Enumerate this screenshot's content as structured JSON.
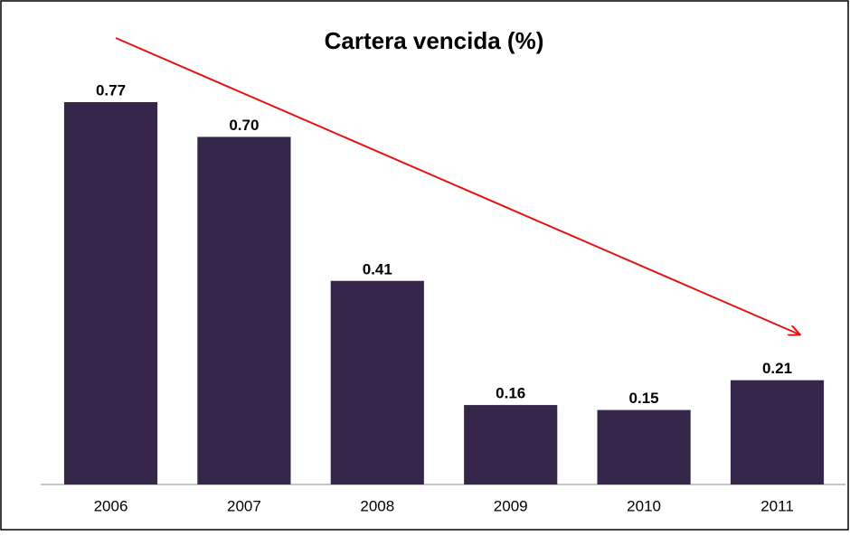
{
  "chart_data": {
    "type": "bar",
    "title": "Cartera vencida (%)",
    "categories": [
      "2006",
      "2007",
      "2008",
      "2009",
      "2010",
      "2011"
    ],
    "values": [
      0.77,
      0.7,
      0.41,
      0.16,
      0.15,
      0.21
    ],
    "value_labels": [
      "0.77",
      "0.70",
      "0.41",
      "0.16",
      "0.15",
      "0.21"
    ],
    "color": "#35264a"
  }
}
